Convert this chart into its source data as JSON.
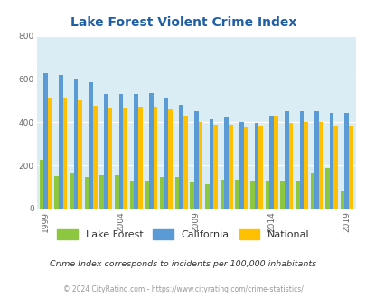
{
  "title": "Lake Forest Violent Crime Index",
  "subtitle": "Crime Index corresponds to incidents per 100,000 inhabitants",
  "footer": "© 2024 CityRating.com - https://www.cityrating.com/crime-statistics/",
  "years": [
    1999,
    2000,
    2001,
    2002,
    2003,
    2004,
    2005,
    2006,
    2007,
    2008,
    2009,
    2010,
    2011,
    2012,
    2013,
    2014,
    2015,
    2016,
    2017,
    2018,
    2019,
    2020
  ],
  "lake_forest": [
    225,
    150,
    165,
    145,
    155,
    155,
    130,
    130,
    148,
    148,
    125,
    112,
    135,
    135,
    130,
    128,
    130,
    128,
    165,
    190,
    80,
    0
  ],
  "california": [
    625,
    620,
    598,
    585,
    530,
    530,
    530,
    535,
    510,
    480,
    450,
    415,
    422,
    400,
    398,
    430,
    450,
    450,
    450,
    445,
    445,
    0
  ],
  "national": [
    510,
    508,
    500,
    475,
    465,
    465,
    470,
    470,
    460,
    430,
    400,
    390,
    388,
    375,
    380,
    430,
    395,
    400,
    400,
    383,
    383,
    0
  ],
  "ylim": [
    0,
    800
  ],
  "yticks": [
    0,
    200,
    400,
    600,
    800
  ],
  "color_lake_forest": "#8dc63f",
  "color_california": "#5b9bd5",
  "color_national": "#ffc000",
  "bg_color": "#daedf4",
  "title_color": "#1f5fa6",
  "subtitle_color": "#333333",
  "footer_color": "#999999",
  "grid_color": "#ffffff"
}
